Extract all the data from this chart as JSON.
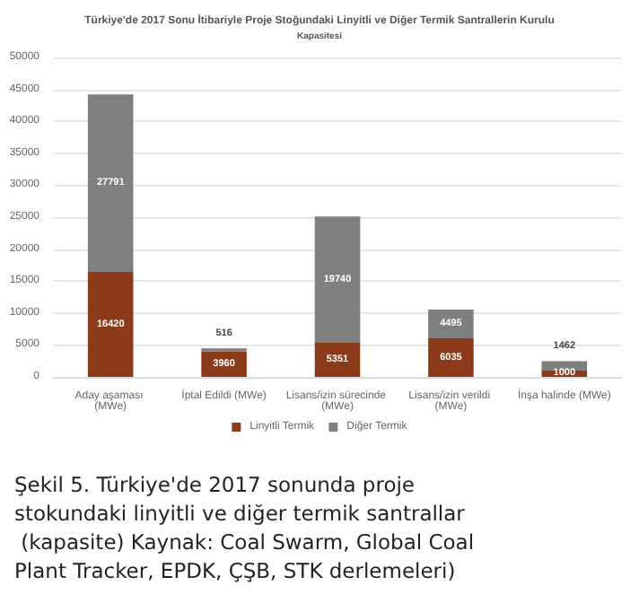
{
  "chart_data": {
    "type": "bar",
    "title": "Türkiye'de 2017 Sonu İtibariyle Proje Stoğundaki Linyitli ve Diğer Termik Santrallerin Kurulu",
    "subtitle": "Kapasitesi",
    "categories": [
      "Aday aşaması (MWe)",
      "İptal Edildi (MWe)",
      "Lisans/izin sürecinde (MWe)",
      "Lisans/izin verildi (MWe)",
      "İnşa halinde (MWe)"
    ],
    "series": [
      {
        "name": "Linyitli Termik",
        "color": "#8b3a1a",
        "values": [
          16420,
          3960,
          5351,
          6035,
          1000
        ]
      },
      {
        "name": "Diğer Termik",
        "color": "#7f7f7f",
        "values": [
          27791,
          516,
          19740,
          4495,
          1462
        ]
      }
    ],
    "stacked": true,
    "data_labels": true,
    "ylim": [
      0,
      50000
    ],
    "yticks": [
      0,
      5000,
      10000,
      15000,
      20000,
      25000,
      30000,
      35000,
      40000,
      45000,
      50000
    ],
    "grid": "y",
    "legend": "bottom",
    "annotations": [
      "Şekil 5. Türkiye'de 2017 sonunda proje stokundaki linyitli ve diğer termik santrallar (kapasite) Kaynak: Coal Swarm, Global Coal Plant Tracker, EPDK, ÇŞB, STK derlemeleri)"
    ]
  }
}
